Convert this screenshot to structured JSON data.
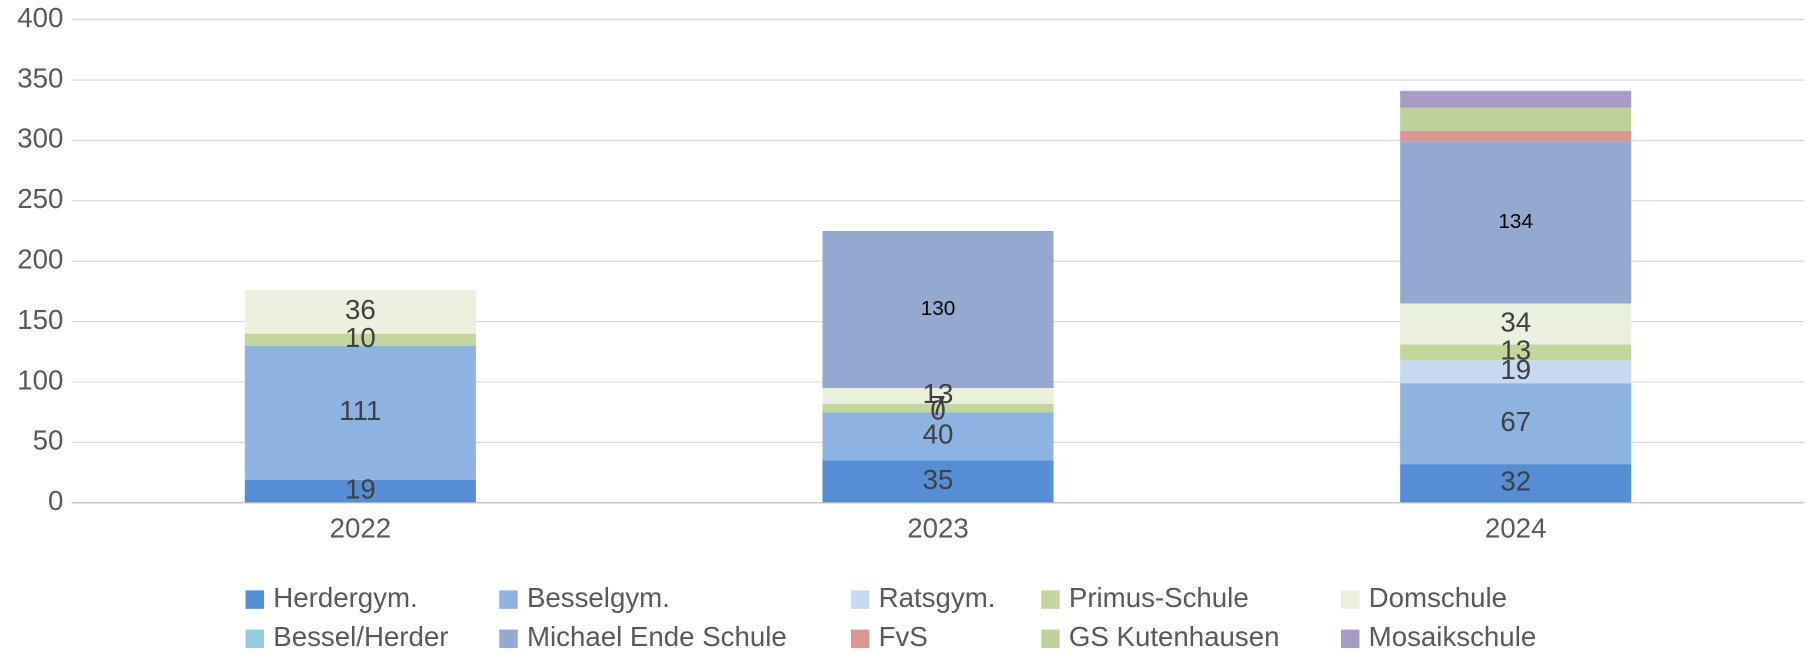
{
  "chart_data": {
    "type": "stacked_bar",
    "categories": [
      "2022",
      "2023",
      "2024"
    ],
    "series": [
      {
        "name": "Herdergym.",
        "color": "#558ed5",
        "values": [
          19,
          35,
          32
        ],
        "data_labels": true
      },
      {
        "name": "Besselgym.",
        "color": "#8db3e2",
        "values": [
          111,
          40,
          67
        ],
        "data_labels": true
      },
      {
        "name": "Ratsgym.",
        "color": "#c6d9f1",
        "values": [
          null,
          0,
          19
        ],
        "data_labels": true
      },
      {
        "name": "Primus-Schule",
        "color": "#c3d69b",
        "values": [
          10,
          7,
          13
        ],
        "data_labels": true
      },
      {
        "name": "Domschule",
        "color": "#ebf1de",
        "values": [
          36,
          13,
          34
        ],
        "data_labels": true
      },
      {
        "name": "Bessel/Herder",
        "color": "#93cddd",
        "values": [
          null,
          null,
          null
        ],
        "data_labels": true
      },
      {
        "name": "Michael Ende Schule",
        "color": "#95a9d0",
        "values": [
          null,
          130,
          134
        ],
        "data_labels": true
      },
      {
        "name": "FvS",
        "color": "#d99694",
        "values": [
          null,
          null,
          9
        ],
        "data_labels": false
      },
      {
        "name": "GS Kutenhausen",
        "color": "#bcd29a",
        "values": [
          null,
          null,
          19
        ],
        "data_labels": false
      },
      {
        "name": "Mosaikschule",
        "color": "#a79bc4",
        "values": [
          null,
          null,
          14
        ],
        "data_labels": false
      }
    ],
    "ylim": [
      0,
      400
    ],
    "yticks": [
      0,
      50,
      100,
      150,
      200,
      250,
      300,
      350,
      400
    ],
    "grid": true,
    "legend": "bottom"
  }
}
